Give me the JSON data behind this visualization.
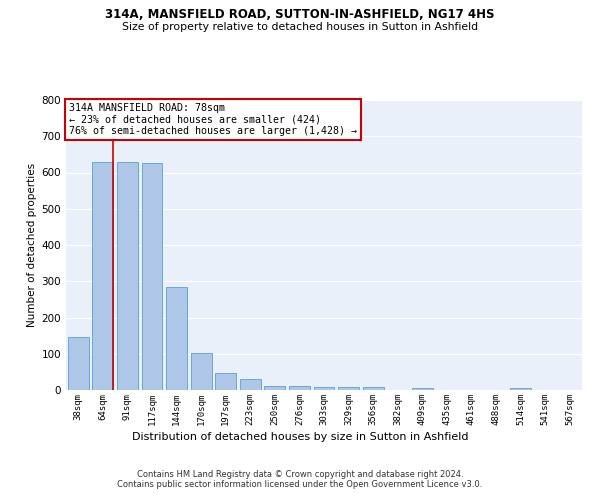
{
  "title1": "314A, MANSFIELD ROAD, SUTTON-IN-ASHFIELD, NG17 4HS",
  "title2": "Size of property relative to detached houses in Sutton in Ashfield",
  "xlabel": "Distribution of detached houses by size in Sutton in Ashfield",
  "ylabel": "Number of detached properties",
  "footer1": "Contains HM Land Registry data © Crown copyright and database right 2024.",
  "footer2": "Contains public sector information licensed under the Open Government Licence v3.0.",
  "categories": [
    "38sqm",
    "64sqm",
    "91sqm",
    "117sqm",
    "144sqm",
    "170sqm",
    "197sqm",
    "223sqm",
    "250sqm",
    "276sqm",
    "303sqm",
    "329sqm",
    "356sqm",
    "382sqm",
    "409sqm",
    "435sqm",
    "461sqm",
    "488sqm",
    "514sqm",
    "541sqm",
    "567sqm"
  ],
  "values": [
    145,
    630,
    630,
    625,
    285,
    103,
    47,
    30,
    12,
    10,
    8,
    7,
    7,
    0,
    5,
    0,
    0,
    0,
    5,
    0,
    0
  ],
  "bar_color": "#aec6e8",
  "bar_edge_color": "#5a9fd4",
  "bg_color": "#eaf0fa",
  "grid_color": "#ffffff",
  "property_line_color": "#cc0000",
  "annotation_text": "314A MANSFIELD ROAD: 78sqm\n← 23% of detached houses are smaller (424)\n76% of semi-detached houses are larger (1,428) →",
  "annotation_box_color": "#cc0000",
  "ylim": [
    0,
    800
  ],
  "yticks": [
    0,
    100,
    200,
    300,
    400,
    500,
    600,
    700,
    800
  ]
}
